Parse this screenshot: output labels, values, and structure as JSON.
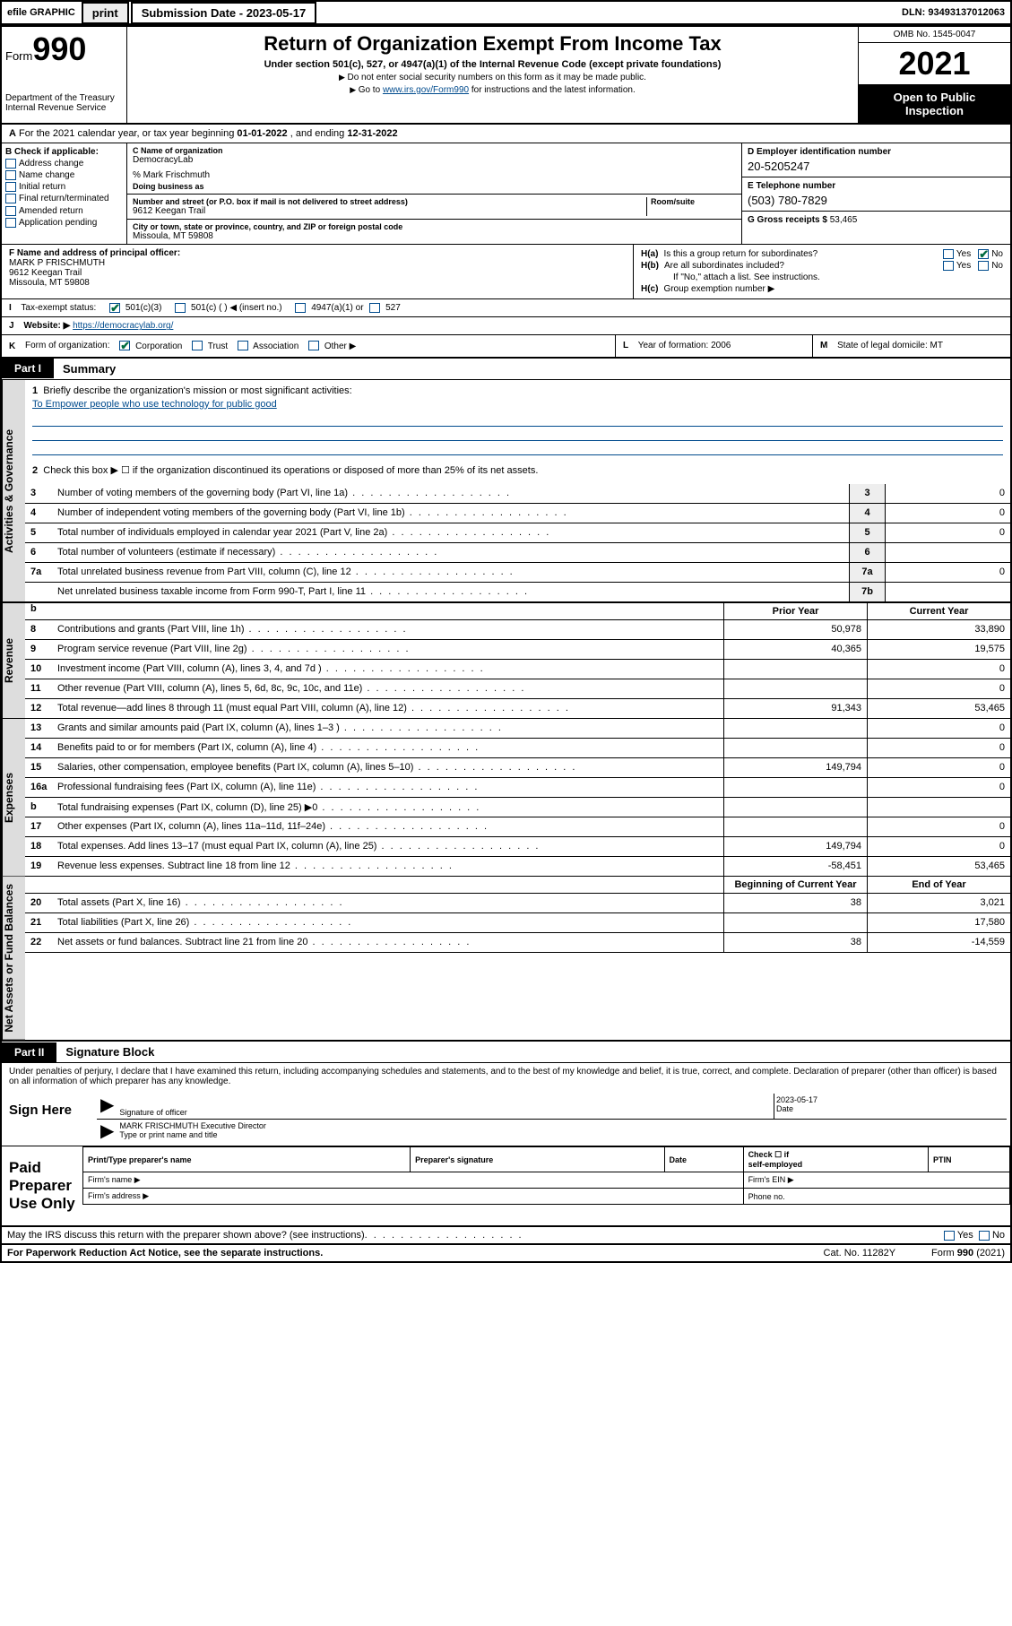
{
  "topbar": {
    "efile_label": "efile GRAPHIC",
    "print_btn": "print",
    "submission_label": "Submission Date - 2023-05-17",
    "dln_label": "DLN: 93493137012063"
  },
  "header": {
    "form_word": "Form",
    "form_num": "990",
    "dept": "Department of the Treasury",
    "irs": "Internal Revenue Service",
    "title": "Return of Organization Exempt From Income Tax",
    "subtitle": "Under section 501(c), 527, or 4947(a)(1) of the Internal Revenue Code (except private foundations)",
    "note1": "Do not enter social security numbers on this form as it may be made public.",
    "note2_pre": "Go to ",
    "note2_link": "www.irs.gov/Form990",
    "note2_post": " for instructions and the latest information.",
    "omb": "OMB No. 1545-0047",
    "year": "2021",
    "open_public_l1": "Open to Public",
    "open_public_l2": "Inspection"
  },
  "row_a": {
    "pre": "For the 2021 calendar year, or tax year beginning ",
    "begin": "01-01-2022",
    "mid": " , and ending ",
    "end": "12-31-2022"
  },
  "box_b": {
    "label": "B Check if applicable:",
    "opts": [
      "Address change",
      "Name change",
      "Initial return",
      "Final return/terminated",
      "Amended return",
      "Application pending"
    ]
  },
  "box_c": {
    "name_label": "C Name of organization",
    "name": "DemocracyLab",
    "care_of": "% Mark Frischmuth",
    "dba_label": "Doing business as",
    "street_label": "Number and street (or P.O. box if mail is not delivered to street address)",
    "room_label": "Room/suite",
    "street": "9612 Keegan Trail",
    "city_label": "City or town, state or province, country, and ZIP or foreign postal code",
    "city": "Missoula, MT  59808"
  },
  "box_d": {
    "label": "D Employer identification number",
    "value": "20-5205247"
  },
  "box_e": {
    "label": "E Telephone number",
    "value": "(503) 780-7829"
  },
  "box_g": {
    "label": "G Gross receipts $",
    "value": "53,465"
  },
  "box_f": {
    "label": "F Name and address of principal officer:",
    "name": "MARK P FRISCHMUTH",
    "addr1": "9612 Keegan Trail",
    "addr2": "Missoula, MT  59808"
  },
  "box_h": {
    "ha": "Is this a group return for subordinates?",
    "hb": "Are all subordinates included?",
    "hnote": "If \"No,\" attach a list. See instructions.",
    "hc": "Group exemption number ▶",
    "yes": "Yes",
    "no": "No"
  },
  "row_i": {
    "letter": "I",
    "label": "Tax-exempt status:",
    "opt1": "501(c)(3)",
    "opt2": "501(c) (   ) ◀ (insert no.)",
    "opt3": "4947(a)(1) or",
    "opt4": "527"
  },
  "row_j": {
    "letter": "J",
    "label": "Website: ▶",
    "value": "https://democracylab.org/"
  },
  "row_k": {
    "letter": "K",
    "label": "Form of organization:",
    "opts": [
      "Corporation",
      "Trust",
      "Association",
      "Other ▶"
    ]
  },
  "row_l": {
    "letter": "L",
    "label": "Year of formation:",
    "value": "2006"
  },
  "row_m": {
    "letter": "M",
    "label": "State of legal domicile:",
    "value": "MT"
  },
  "part1": {
    "tag": "Part I",
    "title": "Summary"
  },
  "summary": {
    "q1_label": "1",
    "q1_text": "Briefly describe the organization's mission or most significant activities:",
    "q1_mission": "To Empower people who use technology for public good",
    "q2_label": "2",
    "q2_text": "Check this box ▶ ☐ if the organization discontinued its operations or disposed of more than 25% of its net assets."
  },
  "gov_lines": [
    {
      "n": "3",
      "t": "Number of voting members of the governing body (Part VI, line 1a)",
      "box": "3",
      "v": "0"
    },
    {
      "n": "4",
      "t": "Number of independent voting members of the governing body (Part VI, line 1b)",
      "box": "4",
      "v": "0"
    },
    {
      "n": "5",
      "t": "Total number of individuals employed in calendar year 2021 (Part V, line 2a)",
      "box": "5",
      "v": "0"
    },
    {
      "n": "6",
      "t": "Total number of volunteers (estimate if necessary)",
      "box": "6",
      "v": ""
    },
    {
      "n": "7a",
      "t": "Total unrelated business revenue from Part VIII, column (C), line 12",
      "box": "7a",
      "v": "0"
    },
    {
      "n": "",
      "t": "Net unrelated business taxable income from Form 990-T, Part I, line 11",
      "box": "7b",
      "v": ""
    }
  ],
  "col_heads": {
    "b": "b",
    "prior": "Prior Year",
    "current": "Current Year"
  },
  "rev_lines": [
    {
      "n": "8",
      "t": "Contributions and grants (Part VIII, line 1h)",
      "p": "50,978",
      "c": "33,890"
    },
    {
      "n": "9",
      "t": "Program service revenue (Part VIII, line 2g)",
      "p": "40,365",
      "c": "19,575"
    },
    {
      "n": "10",
      "t": "Investment income (Part VIII, column (A), lines 3, 4, and 7d )",
      "p": "",
      "c": "0"
    },
    {
      "n": "11",
      "t": "Other revenue (Part VIII, column (A), lines 5, 6d, 8c, 9c, 10c, and 11e)",
      "p": "",
      "c": "0"
    },
    {
      "n": "12",
      "t": "Total revenue—add lines 8 through 11 (must equal Part VIII, column (A), line 12)",
      "p": "91,343",
      "c": "53,465"
    }
  ],
  "exp_lines": [
    {
      "n": "13",
      "t": "Grants and similar amounts paid (Part IX, column (A), lines 1–3 )",
      "p": "",
      "c": "0"
    },
    {
      "n": "14",
      "t": "Benefits paid to or for members (Part IX, column (A), line 4)",
      "p": "",
      "c": "0"
    },
    {
      "n": "15",
      "t": "Salaries, other compensation, employee benefits (Part IX, column (A), lines 5–10)",
      "p": "149,794",
      "c": "0"
    },
    {
      "n": "16a",
      "t": "Professional fundraising fees (Part IX, column (A), line 11e)",
      "p": "",
      "c": "0"
    },
    {
      "n": "b",
      "t": "Total fundraising expenses (Part IX, column (D), line 25) ▶0",
      "p": "SHADE",
      "c": "SHADE"
    },
    {
      "n": "17",
      "t": "Other expenses (Part IX, column (A), lines 11a–11d, 11f–24e)",
      "p": "",
      "c": "0"
    },
    {
      "n": "18",
      "t": "Total expenses. Add lines 13–17 (must equal Part IX, column (A), line 25)",
      "p": "149,794",
      "c": "0"
    },
    {
      "n": "19",
      "t": "Revenue less expenses. Subtract line 18 from line 12",
      "p": "-58,451",
      "c": "53,465"
    }
  ],
  "net_heads": {
    "begin": "Beginning of Current Year",
    "end": "End of Year"
  },
  "net_lines": [
    {
      "n": "20",
      "t": "Total assets (Part X, line 16)",
      "p": "38",
      "c": "3,021"
    },
    {
      "n": "21",
      "t": "Total liabilities (Part X, line 26)",
      "p": "",
      "c": "17,580"
    },
    {
      "n": "22",
      "t": "Net assets or fund balances. Subtract line 21 from line 20",
      "p": "38",
      "c": "-14,559"
    }
  ],
  "part2": {
    "tag": "Part II",
    "title": "Signature Block"
  },
  "sig": {
    "decl": "Under penalties of perjury, I declare that I have examined this return, including accompanying schedules and statements, and to the best of my knowledge and belief, it is true, correct, and complete. Declaration of preparer (other than officer) is based on all information of which preparer has any knowledge.",
    "sign_here": "Sign Here",
    "sig_officer_label": "Signature of officer",
    "date_label": "Date",
    "date_val": "2023-05-17",
    "printed_name": "MARK FRISCHMUTH  Executive Director",
    "printed_label": "Type or print name and title"
  },
  "prep": {
    "label": "Paid Preparer Use Only",
    "h1": "Print/Type preparer's name",
    "h2": "Preparer's signature",
    "h3": "Date",
    "h4_pre": "Check ☐ if",
    "h4_post": "self-employed",
    "h5": "PTIN",
    "r2a": "Firm's name  ▶",
    "r2b": "Firm's EIN ▶",
    "r3a": "Firm's address ▶",
    "r3b": "Phone no."
  },
  "bottom": {
    "may_irs": "May the IRS discuss this return with the preparer shown above? (see instructions)",
    "yes": "Yes",
    "no": "No",
    "paperwork": "For Paperwork Reduction Act Notice, see the separate instructions.",
    "cat": "Cat. No. 11282Y",
    "formref": "Form 990 (2021)"
  },
  "side_tabs": {
    "gov": "Activities & Governance",
    "rev": "Revenue",
    "exp": "Expenses",
    "net": "Net Assets or Fund Balances"
  }
}
